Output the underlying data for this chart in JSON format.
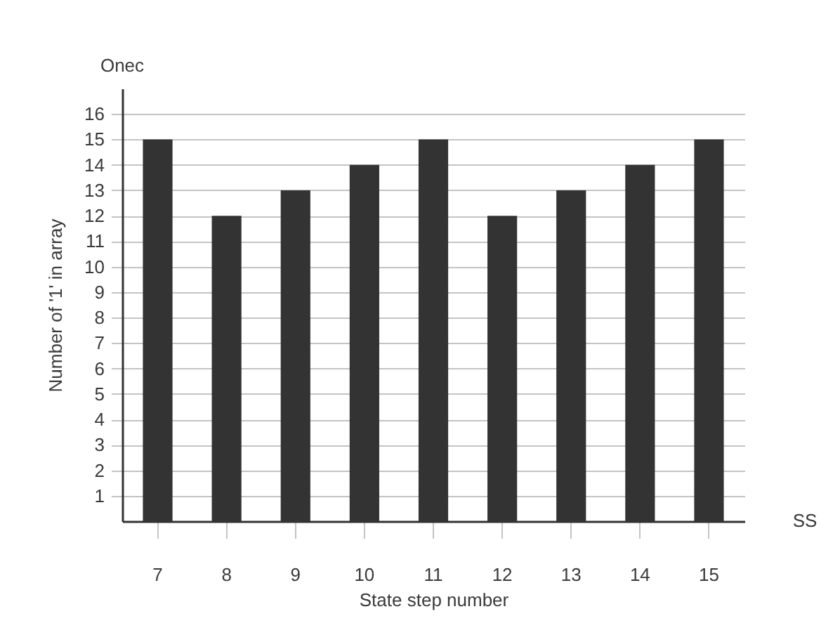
{
  "chart_data": {
    "type": "bar",
    "xlabel": "State step number",
    "ylabel": "Number of '1' in array",
    "annotations": [
      "Onec",
      "SS"
    ],
    "categories": [
      "7",
      "8",
      "9",
      "10",
      "11",
      "12",
      "13",
      "14",
      "15"
    ],
    "values": [
      15,
      12,
      13,
      14,
      15,
      12,
      13,
      14,
      15
    ],
    "color": "#333333",
    "ylim": [
      0,
      17
    ],
    "yticks": [
      1,
      2,
      3,
      4,
      5,
      6,
      7,
      8,
      9,
      10,
      11,
      12,
      13,
      14,
      15,
      16
    ],
    "grid": "y"
  }
}
